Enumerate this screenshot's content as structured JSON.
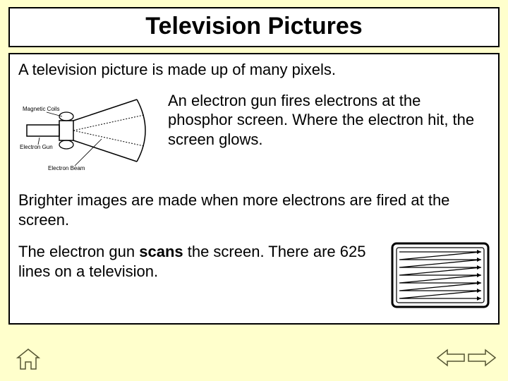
{
  "title": "Television Pictures",
  "intro": "A television picture is made up of many pixels.",
  "mid_paragraph": "An electron gun fires electrons at the phosphor screen. Where the electron hit, the screen glows.",
  "bright_paragraph": "Brighter images are made when more electrons are fired at the screen.",
  "scan_pre": "The electron gun ",
  "scan_bold": "scans",
  "scan_post": " the screen. There are 625 lines on a television.",
  "crt_labels": {
    "magnetic_coils": "Magnetic Coils",
    "electron_gun": "Electron Gun",
    "electron_beam": "Electron Beam"
  },
  "colors": {
    "page_bg": "#ffffcc",
    "box_bg": "#ffffff",
    "border": "#000000",
    "stroke": "#000000",
    "nav_fill": "#ffffcc",
    "nav_stroke": "#555533"
  },
  "scan_screen": {
    "lines": 7,
    "outer_rx": 6,
    "inner_inset": 6
  }
}
